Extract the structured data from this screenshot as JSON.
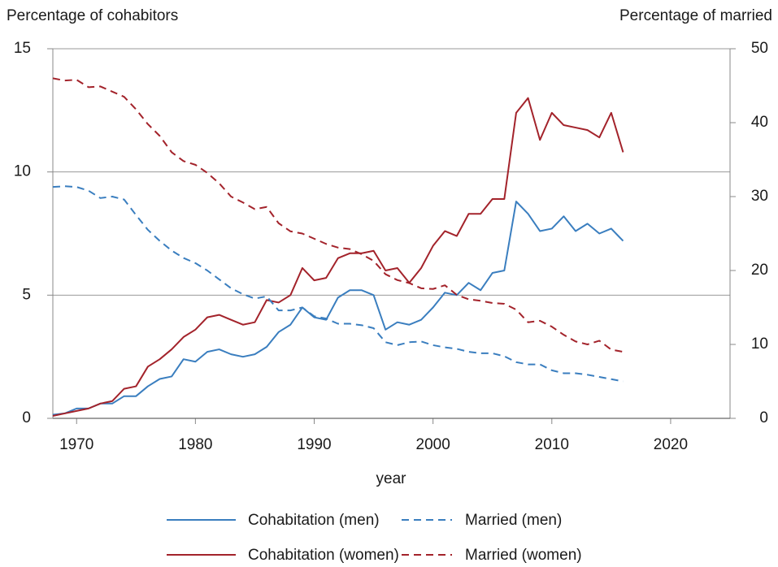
{
  "chart_data": {
    "type": "line",
    "ylabel": "Percentage of cohabitors",
    "y2label": "Percentage of married",
    "xlabel": "year",
    "x": [
      1968,
      1969,
      1970,
      1971,
      1972,
      1973,
      1974,
      1975,
      1976,
      1977,
      1978,
      1979,
      1980,
      1981,
      1982,
      1983,
      1984,
      1985,
      1986,
      1987,
      1988,
      1989,
      1990,
      1991,
      1992,
      1993,
      1994,
      1995,
      1996,
      1997,
      1998,
      1999,
      2000,
      2001,
      2002,
      2003,
      2004,
      2005,
      2006,
      2007,
      2008,
      2009,
      2010,
      2011,
      2012,
      2013,
      2014,
      2015,
      2016
    ],
    "xlim": [
      1968,
      2025
    ],
    "xticks": [
      1970,
      1980,
      1990,
      2000,
      2010,
      2020
    ],
    "ylim": [
      0,
      15
    ],
    "yticks": [
      0,
      5,
      10,
      15
    ],
    "y2lim": [
      0,
      50
    ],
    "y2ticks": [
      0,
      10,
      20,
      30,
      40,
      50
    ],
    "grid": true,
    "series": [
      {
        "name": "Cohabitation (men)",
        "color": "#3a7ebf",
        "linestyle": "solid",
        "values": [
          0.15,
          0.2,
          0.4,
          0.4,
          0.6,
          0.6,
          0.9,
          0.9,
          1.3,
          1.6,
          1.7,
          2.4,
          2.3,
          2.7,
          2.8,
          2.6,
          2.5,
          2.6,
          2.9,
          3.5,
          3.8,
          4.5,
          4.1,
          4.0,
          4.9,
          5.2,
          5.2,
          5.0,
          3.6,
          3.9,
          3.8,
          4.0,
          4.5,
          5.1,
          5.0,
          5.5,
          5.2,
          5.9,
          6.0,
          8.8,
          8.3,
          7.6,
          7.7,
          8.2,
          7.6,
          7.9,
          7.5,
          7.7,
          7.2
        ]
      },
      {
        "name": "Cohabitation (women)",
        "color": "#a3232b",
        "linestyle": "solid",
        "values": [
          0.1,
          0.2,
          0.3,
          0.4,
          0.6,
          0.7,
          1.2,
          1.3,
          2.1,
          2.4,
          2.8,
          3.3,
          3.6,
          4.1,
          4.2,
          4.0,
          3.8,
          3.9,
          4.8,
          4.7,
          5.0,
          6.1,
          5.6,
          5.7,
          6.5,
          6.7,
          6.7,
          6.8,
          6.0,
          6.1,
          5.5,
          6.1,
          7.0,
          7.6,
          7.4,
          8.3,
          8.3,
          8.9,
          8.9,
          12.4,
          13.0,
          11.3,
          12.4,
          11.9,
          11.8,
          11.7,
          11.4,
          12.4,
          10.8
        ]
      },
      {
        "name": "Married (men)",
        "color": "#3a7ebf",
        "linestyle": "dashed",
        "axis": "y2",
        "values": [
          31.3,
          31.4,
          31.3,
          30.8,
          29.8,
          30.0,
          29.6,
          27.5,
          25.5,
          24.0,
          22.7,
          21.7,
          21.0,
          20.0,
          18.8,
          17.6,
          16.8,
          16.2,
          16.5,
          14.6,
          14.6,
          15.0,
          13.8,
          13.5,
          12.8,
          12.8,
          12.6,
          12.2,
          10.3,
          9.9,
          10.3,
          10.4,
          9.9,
          9.6,
          9.4,
          9.0,
          8.8,
          8.8,
          8.4,
          7.6,
          7.3,
          7.3,
          6.5,
          6.1,
          6.1,
          5.9,
          5.6,
          5.3,
          5.0
        ]
      },
      {
        "name": "Married (women)",
        "color": "#a3232b",
        "linestyle": "dashed",
        "axis": "y2",
        "values": [
          46.0,
          45.7,
          45.8,
          44.8,
          44.9,
          44.2,
          43.5,
          41.8,
          39.8,
          38.2,
          36.0,
          34.8,
          34.3,
          33.2,
          31.8,
          30.0,
          29.2,
          28.3,
          28.6,
          26.4,
          25.3,
          25.0,
          24.3,
          23.6,
          23.1,
          22.9,
          22.2,
          21.3,
          19.5,
          18.7,
          18.3,
          17.6,
          17.5,
          18.0,
          16.7,
          16.1,
          15.9,
          15.6,
          15.5,
          14.7,
          13.0,
          13.2,
          12.4,
          11.3,
          10.4,
          10.0,
          10.5,
          9.3,
          9.0
        ]
      }
    ]
  }
}
